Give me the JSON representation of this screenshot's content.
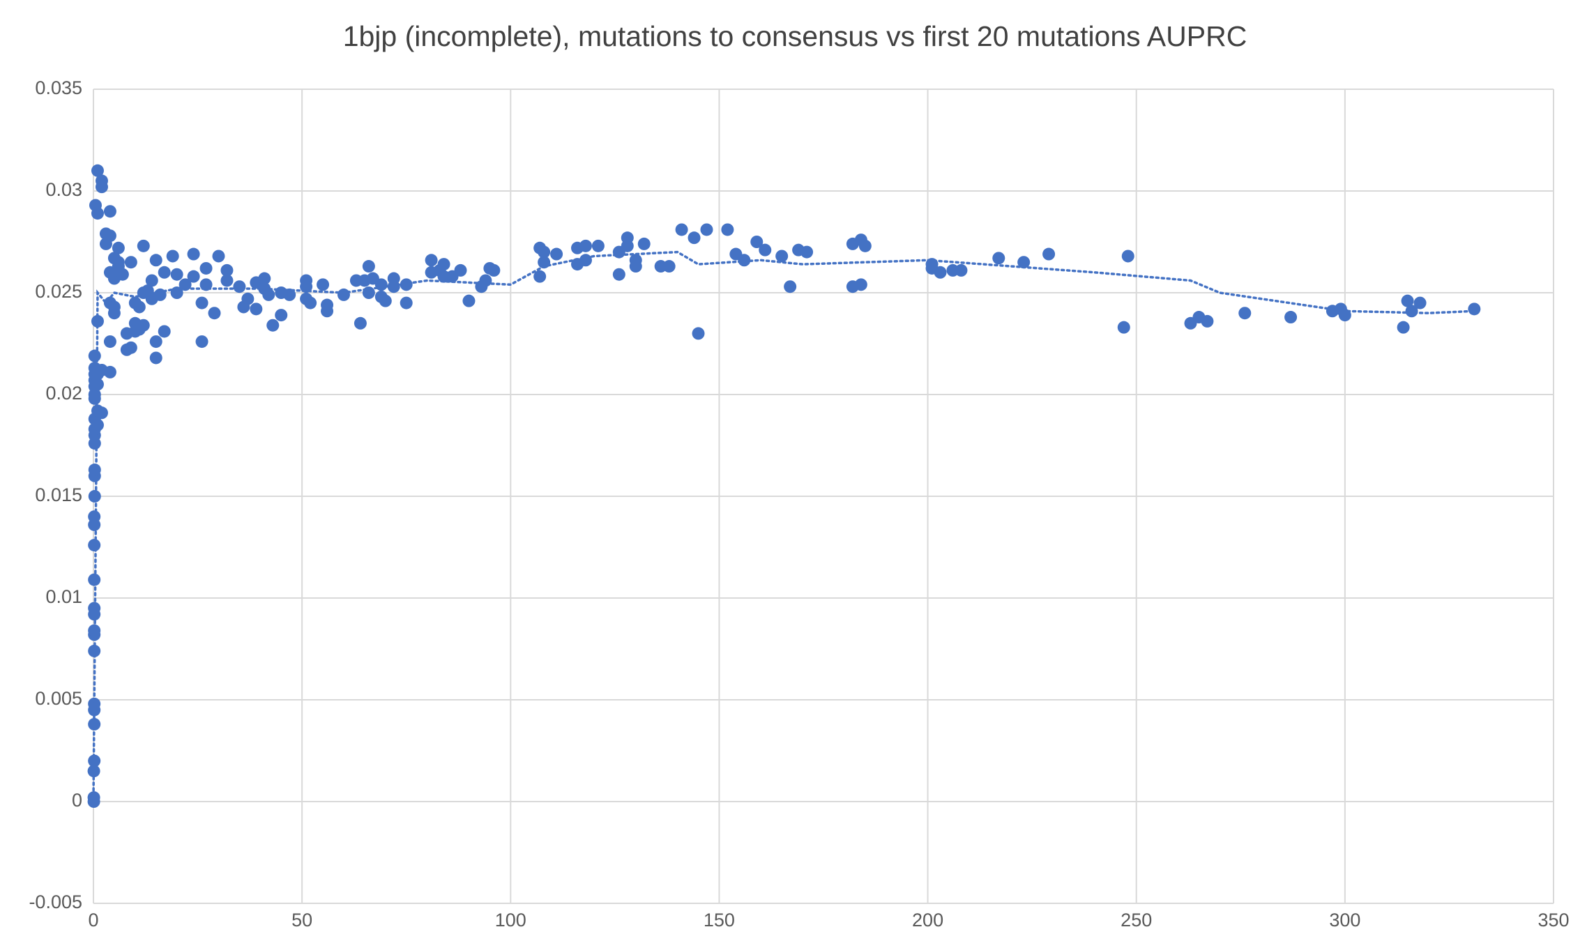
{
  "chart_data": {
    "type": "scatter",
    "title": "1bjp (incomplete), mutations to consensus vs first 20 mutations AUPRC",
    "xlim": [
      0,
      350
    ],
    "xticks": [
      0,
      50,
      100,
      150,
      200,
      250,
      300,
      350
    ],
    "ylim": [
      -0.005,
      0.035
    ],
    "yticks": [
      -0.005,
      0,
      0.005,
      0.01,
      0.015,
      0.02,
      0.025,
      0.03,
      0.035
    ],
    "grid": true,
    "series": [
      {
        "color": "#4472c4",
        "x": [
          0.1,
          0.1,
          0.1,
          0.2,
          0.2,
          0.2,
          0.2,
          0.2,
          0.2,
          0.2,
          0.2,
          0.2,
          0.2,
          0.2,
          0.2,
          0.2,
          0.3,
          0.3,
          0.3,
          0.3,
          0.3,
          0.3,
          0.3,
          0.3,
          0.3,
          0.3,
          0.3,
          0.3,
          0.3,
          0.3,
          0.5,
          1,
          1,
          1,
          1,
          1,
          1,
          1,
          2,
          2,
          2,
          2,
          3,
          3,
          4,
          4,
          4,
          4,
          4,
          4,
          5,
          5,
          5,
          5,
          6,
          6,
          6,
          6,
          7,
          8,
          8,
          9,
          9,
          10,
          10,
          10,
          11,
          11,
          12,
          12,
          12,
          13,
          14,
          14,
          15,
          15,
          15,
          16,
          17,
          17,
          19,
          20,
          20,
          22,
          24,
          24,
          26,
          26,
          27,
          27,
          29,
          30,
          32,
          32,
          35,
          36,
          37,
          39,
          39,
          41,
          41,
          42,
          43,
          45,
          45,
          47,
          51,
          51,
          51,
          52,
          55,
          56,
          56,
          60,
          63,
          64,
          65,
          66,
          66,
          67,
          69,
          69,
          70,
          72,
          72,
          75,
          75,
          81,
          81,
          83,
          84,
          84,
          86,
          88,
          90,
          93,
          94,
          95,
          96,
          107,
          107,
          108,
          108,
          111,
          116,
          116,
          118,
          118,
          121,
          126,
          126,
          128,
          128,
          130,
          130,
          132,
          136,
          138,
          141,
          144,
          145,
          147,
          152,
          154,
          156,
          159,
          161,
          165,
          167,
          169,
          171,
          182,
          182,
          184,
          184,
          185,
          201,
          201,
          203,
          206,
          208,
          217,
          223,
          229,
          247,
          248,
          263,
          265,
          267,
          276,
          287,
          297,
          299,
          300,
          314,
          315,
          316,
          318,
          331
        ],
        "y": [
          0,
          0.0002,
          0.0015,
          0.002,
          0.0038,
          0.0045,
          0.0048,
          0.0074,
          0.0082,
          0.0084,
          0.0092,
          0.0095,
          0.0109,
          0.0126,
          0.0136,
          0.014,
          0.015,
          0.016,
          0.0163,
          0.0176,
          0.018,
          0.0183,
          0.0188,
          0.0198,
          0.02,
          0.0204,
          0.0207,
          0.021,
          0.0213,
          0.0219,
          0.0293,
          0.031,
          0.0289,
          0.0236,
          0.0185,
          0.0192,
          0.0205,
          0.021,
          0.0305,
          0.0302,
          0.0212,
          0.0191,
          0.0279,
          0.0274,
          0.0278,
          0.026,
          0.029,
          0.0245,
          0.0226,
          0.0211,
          0.0267,
          0.0243,
          0.024,
          0.0257,
          0.0261,
          0.0265,
          0.0272,
          0.0263,
          0.0259,
          0.023,
          0.0222,
          0.0265,
          0.0223,
          0.0245,
          0.0235,
          0.0231,
          0.0243,
          0.0232,
          0.0273,
          0.025,
          0.0234,
          0.0251,
          0.0256,
          0.0247,
          0.0266,
          0.0226,
          0.0218,
          0.0249,
          0.026,
          0.0231,
          0.0268,
          0.0259,
          0.025,
          0.0254,
          0.0269,
          0.0258,
          0.0245,
          0.0226,
          0.0262,
          0.0254,
          0.024,
          0.0268,
          0.0261,
          0.0256,
          0.0253,
          0.0243,
          0.0247,
          0.0255,
          0.0242,
          0.0257,
          0.0252,
          0.0249,
          0.0234,
          0.025,
          0.0239,
          0.0249,
          0.0256,
          0.0253,
          0.0247,
          0.0245,
          0.0254,
          0.0244,
          0.0241,
          0.0249,
          0.0256,
          0.0235,
          0.0256,
          0.0263,
          0.025,
          0.0257,
          0.0254,
          0.0248,
          0.0246,
          0.0257,
          0.0253,
          0.0254,
          0.0245,
          0.0266,
          0.026,
          0.0261,
          0.0264,
          0.0258,
          0.0258,
          0.0261,
          0.0246,
          0.0253,
          0.0256,
          0.0262,
          0.0261,
          0.0272,
          0.0258,
          0.0265,
          0.027,
          0.0269,
          0.0272,
          0.0264,
          0.0273,
          0.0266,
          0.0273,
          0.027,
          0.0259,
          0.0277,
          0.0273,
          0.0266,
          0.0263,
          0.0274,
          0.0263,
          0.0263,
          0.0281,
          0.0277,
          0.023,
          0.0281,
          0.0281,
          0.0269,
          0.0266,
          0.0275,
          0.0271,
          0.0268,
          0.0253,
          0.0271,
          0.027,
          0.0274,
          0.0253,
          0.0276,
          0.0254,
          0.0273,
          0.0264,
          0.0262,
          0.026,
          0.0261,
          0.0261,
          0.0267,
          0.0265,
          0.0269,
          0.0233,
          0.0268,
          0.0235,
          0.0238,
          0.0236,
          0.024,
          0.0238,
          0.0241,
          0.0242,
          0.0239,
          0.0233,
          0.0246,
          0.0241,
          0.0245,
          0.0242
        ]
      }
    ],
    "trendline": {
      "color": "#4472c4",
      "style": "dotted",
      "x": [
        0,
        0.5,
        1,
        3,
        5,
        10,
        20,
        40,
        60,
        80,
        100,
        108,
        120,
        140,
        145,
        160,
        170,
        185,
        200,
        220,
        240,
        263,
        270,
        300,
        320,
        331
      ],
      "y": [
        0,
        0.012,
        0.025,
        0.0245,
        0.025,
        0.0248,
        0.0252,
        0.0252,
        0.025,
        0.0256,
        0.0254,
        0.0263,
        0.0268,
        0.027,
        0.0264,
        0.0266,
        0.0264,
        0.0265,
        0.0266,
        0.0263,
        0.026,
        0.0256,
        0.025,
        0.0241,
        0.024,
        0.0241
      ]
    }
  }
}
